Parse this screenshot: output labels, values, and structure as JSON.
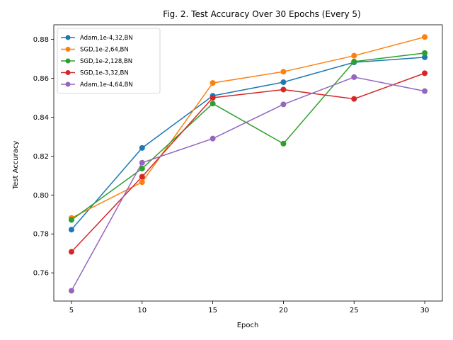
{
  "chart_data": {
    "type": "line",
    "title": "Fig. 2. Test Accuracy Over 30 Epochs (Every 5)",
    "xlabel": "Epoch",
    "ylabel": "Test Accuracy",
    "x": [
      5,
      10,
      15,
      20,
      25,
      30
    ],
    "xlim": [
      3.75,
      31.25
    ],
    "ylim": [
      0.7455,
      0.8875
    ],
    "xticks": [
      5,
      10,
      15,
      20,
      25,
      30
    ],
    "yticks": [
      0.76,
      0.78,
      0.8,
      0.82,
      0.84,
      0.86,
      0.88
    ],
    "ytick_labels": [
      "0.76",
      "0.78",
      "0.80",
      "0.82",
      "0.84",
      "0.86",
      "0.88"
    ],
    "grid": false,
    "legend_position": "upper-left",
    "series": [
      {
        "name": "Adam,1e-4,32,BN",
        "color": "#1f77b4",
        "values": [
          0.7822,
          0.8242,
          0.851,
          0.858,
          0.8682,
          0.8708
        ]
      },
      {
        "name": "SGD,1e-2,64,BN",
        "color": "#ff7f0e",
        "values": [
          0.7882,
          0.8066,
          0.8576,
          0.8634,
          0.8716,
          0.8812
        ]
      },
      {
        "name": "SGD,1e-2,128,BN",
        "color": "#2ca02c",
        "values": [
          0.7872,
          0.8136,
          0.847,
          0.8264,
          0.8686,
          0.873
        ]
      },
      {
        "name": "SGD,1e-3,32,BN",
        "color": "#d62728",
        "values": [
          0.7708,
          0.8094,
          0.85,
          0.8542,
          0.8494,
          0.8626
        ]
      },
      {
        "name": "Adam,1e-4,64,BN",
        "color": "#9467bd",
        "values": [
          0.7508,
          0.8166,
          0.829,
          0.8466,
          0.8606,
          0.8534
        ]
      }
    ]
  }
}
